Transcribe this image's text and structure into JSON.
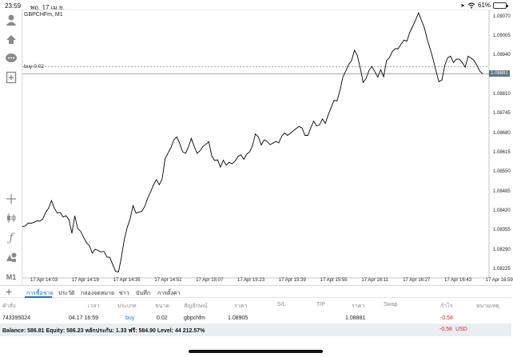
{
  "status": {
    "time": "23:59",
    "date": "พฤ. 17 เม.ย.",
    "battery": "61%",
    "battery_level": 0.61,
    "icons": [
      "wifi-icon",
      "location-icon",
      "battery-icon"
    ]
  },
  "toolbar": {
    "icons": [
      "account-icon",
      "share-icon",
      "chat-icon",
      "add-document-icon",
      "crosshair-icon",
      "candlestick-icon",
      "function-icon",
      "objects-icon"
    ],
    "timeframe": "M1"
  },
  "chart": {
    "symbol_title": "GBPCHFm, M1",
    "order_line_label": "buy 0.02",
    "current_price": "1.08881",
    "y_ticks": [
      "1.09070",
      "1.09005",
      "1.08940",
      "1.08810",
      "1.08745",
      "1.08680",
      "1.08615",
      "1.08550",
      "1.08485",
      "1.08420",
      "1.08355",
      "1.08290",
      "1.08225"
    ],
    "x_ticks": [
      "17 Apr 14:03",
      "17 Apr 14:19",
      "17 Apr 14:35",
      "17 Apr 14:51",
      "17 Apr 15:07",
      "17 Apr 15:23",
      "17 Apr 15:39",
      "17 Apr 15:55",
      "17 Apr 16:11",
      "17 Apr 16:27",
      "17 Apr 16:43",
      "17 Apr 16:59"
    ],
    "line_color": "#000000",
    "order_line_color": "#8a8a8a",
    "price_tag_color": "#5f7488"
  },
  "chart_data": {
    "type": "line",
    "ylim": [
      1.08198,
      1.09096
    ],
    "order_price": 1.08905,
    "current_price": 1.08881,
    "series": [
      {
        "values": [
          1.0837,
          1.08372,
          1.08382,
          1.08381,
          1.08384,
          1.08389,
          1.08388,
          1.08395,
          1.08418,
          1.08431,
          1.08457,
          1.08431,
          1.08415,
          1.08417,
          1.08402,
          1.08406,
          1.08393,
          1.08347,
          1.08406,
          1.08363,
          1.08354,
          1.08334,
          1.08316,
          1.08306,
          1.08281,
          1.08294,
          1.0829,
          1.08285,
          1.08287,
          1.08268,
          1.08267,
          1.08243,
          1.0822,
          1.08218,
          1.08267,
          1.08327,
          1.08367,
          1.08396,
          1.0844,
          1.08415,
          1.08418,
          1.08421,
          1.08437,
          1.08465,
          1.08485,
          1.0851,
          1.08527,
          1.0851,
          1.0853,
          1.08597,
          1.08616,
          1.08634,
          1.0866,
          1.0867,
          1.08648,
          1.0862,
          1.08615,
          1.08636,
          1.08665,
          1.08638,
          1.08615,
          1.08624,
          1.08638,
          1.08645,
          1.08654,
          1.08606,
          1.08591,
          1.08593,
          1.08569,
          1.08592,
          1.08575,
          1.08585,
          1.0858,
          1.08589,
          1.08604,
          1.0861,
          1.08595,
          1.08612,
          1.0862,
          1.0864,
          1.0868,
          1.0867,
          1.08643,
          1.0866,
          1.08655,
          1.08644,
          1.08649,
          1.08655,
          1.0865,
          1.08672,
          1.08683,
          1.08675,
          1.08682,
          1.0869,
          1.08698,
          1.08705,
          1.087,
          1.08675,
          1.08675,
          1.087,
          1.08723,
          1.08707,
          1.0871,
          1.0873,
          1.08715,
          1.08744,
          1.08768,
          1.08792,
          1.0879,
          1.08825,
          1.0887,
          1.0889,
          1.08912,
          1.08925,
          1.0896,
          1.08942,
          1.089,
          1.08852,
          1.08866,
          1.08892,
          1.08906,
          1.08888,
          1.0887,
          1.08895,
          1.08871,
          1.08925,
          1.08935,
          1.08956,
          1.08965,
          1.08965,
          1.0898,
          1.08994,
          1.0899,
          1.0902,
          1.0904,
          1.09062,
          1.09085,
          1.0906,
          1.09035,
          1.08996,
          1.08964,
          1.0893,
          1.0889,
          1.08855,
          1.0886,
          1.08909,
          1.08935,
          1.0894,
          1.08919,
          1.0893,
          1.0893,
          1.08919,
          1.08903,
          1.0894,
          1.08934,
          1.08926,
          1.0891,
          1.0889,
          1.08881
        ]
      }
    ]
  },
  "tabs": [
    "การซื้อขาย",
    "ประวัติ",
    "กล่องจดหมาย",
    "ข่าว",
    "บันทึก",
    "การตั้งค่า"
  ],
  "table": {
    "headers": [
      "คำสั่ง",
      "เวลา",
      "ประเภท",
      "ขนาด",
      "สัญลักษณ์",
      "ราคา",
      "S/L",
      "T/P",
      "ราคา",
      "Swap",
      "กำไร",
      "หมายเหตุ"
    ],
    "row": {
      "order": "743395024",
      "time": "04.17 16:59",
      "type": "buy",
      "size": "0.02",
      "symbol": "gbpchfm",
      "open_price": "1.08905",
      "current_price": "1.08881",
      "profit": "-0.58"
    }
  },
  "account": {
    "summary": "Balance: 586.81  Equity: 586.23  หลักประกัน: 1.33  ฟรี: 584.90  Level: 44 212.57%",
    "profit": "-0.58",
    "currency": "USD"
  }
}
